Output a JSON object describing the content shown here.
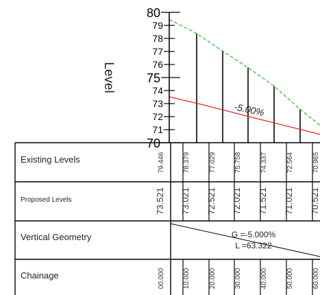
{
  "axis": {
    "label": "Level",
    "ticks": [
      "80",
      "79",
      "78",
      "77",
      "76",
      "75",
      "74",
      "73",
      "72",
      "71",
      "70"
    ],
    "min": 70,
    "max": 80
  },
  "grade_label": "-5.00%",
  "colors": {
    "existing_line": "#22bb22",
    "proposed_line": "#ee1111",
    "grid": "#000000"
  },
  "table": {
    "rows": [
      {
        "key": "existing",
        "label": "Existing Levels"
      },
      {
        "key": "proposed",
        "label": "Proposed Levels"
      },
      {
        "key": "geometry",
        "label": "Vertical Geometry"
      },
      {
        "key": "chainage",
        "label": "Chainage"
      }
    ],
    "first_existing": "79.446",
    "first_proposed": "73.521",
    "first_chainage": "00.000",
    "columns": [
      {
        "existing": "78.379",
        "proposed": "73.021",
        "chainage": "10.000"
      },
      {
        "existing": "77.029",
        "proposed": "72.521",
        "chainage": "20.000"
      },
      {
        "existing": "75.758",
        "proposed": "72.021",
        "chainage": "30.000"
      },
      {
        "existing": "74.337",
        "proposed": "71.521",
        "chainage": "40.000"
      },
      {
        "existing": "72.564",
        "proposed": "71.021",
        "chainage": "50.000"
      },
      {
        "existing": "70.965",
        "proposed": "70.521",
        "chainage": "60.000"
      }
    ],
    "geometry": {
      "grade": "G =-5.000%",
      "length": "L =63.322"
    }
  },
  "chart_data": {
    "type": "line",
    "xlabel": "",
    "ylabel": "Level",
    "ylim": [
      70,
      80
    ],
    "x": [
      0,
      10,
      20,
      30,
      40,
      50,
      60
    ],
    "series": [
      {
        "values": [
          79.446,
          78.379,
          77.029,
          75.758,
          74.337,
          72.564,
          70.965
        ]
      },
      {
        "values": [
          73.521,
          73.021,
          72.521,
          72.021,
          71.521,
          71.021,
          70.521
        ]
      }
    ]
  }
}
